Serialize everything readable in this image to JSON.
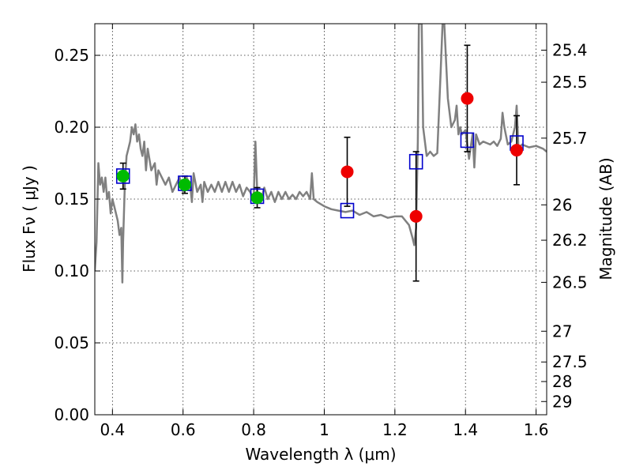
{
  "chart_data": {
    "type": "scatter",
    "xlabel": "Wavelength  λ (μm)",
    "ylabel": "Flux  Fν  ( μJy )",
    "ylabel_right": "Magnitude (AB)",
    "xlim": [
      0.35,
      1.63
    ],
    "ylim": [
      0.0,
      0.272
    ],
    "x_ticks": [
      0.4,
      0.6,
      0.8,
      1.0,
      1.2,
      1.4,
      1.6
    ],
    "x_tick_labels": [
      "0.4",
      "0.6",
      "0.8",
      "1",
      "1.2",
      "1.4",
      "1.6"
    ],
    "y_ticks": [
      0.0,
      0.05,
      0.1,
      0.15,
      0.2,
      0.25
    ],
    "y_tick_labels": [
      "0.00",
      "0.05",
      "0.10",
      "0.15",
      "0.20",
      "0.25"
    ],
    "mag_ticks": [
      {
        "label": "25.4",
        "flux": 0.2536
      },
      {
        "label": "25.5",
        "flux": 0.2313
      },
      {
        "label": "25.7",
        "flux": 0.1924
      },
      {
        "label": "26",
        "flux": 0.146
      },
      {
        "label": "26.2",
        "flux": 0.1214
      },
      {
        "label": "26.5",
        "flux": 0.0921
      },
      {
        "label": "27",
        "flux": 0.0581
      },
      {
        "label": "27.5",
        "flux": 0.0367
      },
      {
        "label": "28",
        "flux": 0.0231
      },
      {
        "label": "29",
        "flux": 0.0092
      }
    ],
    "grid": true,
    "colors": {
      "template": "#808080",
      "green_points": "#00bb00",
      "red_points": "#ee0000",
      "model_squares": "#0000cc",
      "error_bars": "#000000"
    },
    "template_spectrum": {
      "x": [
        0.35,
        0.355,
        0.36,
        0.365,
        0.37,
        0.375,
        0.38,
        0.385,
        0.39,
        0.395,
        0.4,
        0.405,
        0.41,
        0.415,
        0.42,
        0.425,
        0.428,
        0.43,
        0.435,
        0.44,
        0.445,
        0.45,
        0.455,
        0.46,
        0.465,
        0.47,
        0.475,
        0.48,
        0.485,
        0.49,
        0.495,
        0.5,
        0.51,
        0.52,
        0.525,
        0.53,
        0.54,
        0.55,
        0.56,
        0.57,
        0.58,
        0.59,
        0.6,
        0.61,
        0.62,
        0.625,
        0.63,
        0.64,
        0.65,
        0.655,
        0.66,
        0.67,
        0.68,
        0.69,
        0.7,
        0.71,
        0.72,
        0.73,
        0.74,
        0.75,
        0.76,
        0.77,
        0.78,
        0.79,
        0.8,
        0.805,
        0.81,
        0.82,
        0.83,
        0.84,
        0.85,
        0.86,
        0.87,
        0.88,
        0.89,
        0.9,
        0.91,
        0.92,
        0.93,
        0.94,
        0.95,
        0.96,
        0.965,
        0.97,
        0.98,
        1.0,
        1.02,
        1.04,
        1.06,
        1.08,
        1.1,
        1.12,
        1.14,
        1.16,
        1.18,
        1.2,
        1.22,
        1.24,
        1.25,
        1.255,
        1.26,
        1.265,
        1.268,
        1.272,
        1.276,
        1.28,
        1.29,
        1.3,
        1.31,
        1.32,
        1.33,
        1.335,
        1.34,
        1.35,
        1.36,
        1.37,
        1.375,
        1.38,
        1.385,
        1.39,
        1.4,
        1.41,
        1.42,
        1.425,
        1.43,
        1.44,
        1.45,
        1.46,
        1.47,
        1.48,
        1.49,
        1.5,
        1.505,
        1.51,
        1.52,
        1.53,
        1.54,
        1.545,
        1.55,
        1.56,
        1.58,
        1.6,
        1.62,
        1.63
      ],
      "y": [
        0.1,
        0.12,
        0.175,
        0.16,
        0.165,
        0.155,
        0.165,
        0.15,
        0.155,
        0.14,
        0.15,
        0.145,
        0.14,
        0.135,
        0.125,
        0.13,
        0.092,
        0.12,
        0.16,
        0.18,
        0.185,
        0.19,
        0.2,
        0.195,
        0.202,
        0.19,
        0.195,
        0.185,
        0.18,
        0.19,
        0.17,
        0.185,
        0.17,
        0.175,
        0.16,
        0.17,
        0.165,
        0.16,
        0.165,
        0.155,
        0.16,
        0.165,
        0.155,
        0.165,
        0.16,
        0.148,
        0.168,
        0.155,
        0.16,
        0.148,
        0.162,
        0.155,
        0.16,
        0.155,
        0.162,
        0.155,
        0.162,
        0.155,
        0.162,
        0.155,
        0.16,
        0.152,
        0.158,
        0.155,
        0.15,
        0.19,
        0.155,
        0.148,
        0.158,
        0.15,
        0.155,
        0.148,
        0.155,
        0.15,
        0.155,
        0.15,
        0.153,
        0.15,
        0.155,
        0.152,
        0.155,
        0.15,
        0.168,
        0.15,
        0.148,
        0.145,
        0.143,
        0.142,
        0.141,
        0.142,
        0.139,
        0.141,
        0.138,
        0.139,
        0.137,
        0.138,
        0.138,
        0.132,
        0.123,
        0.118,
        0.13,
        0.19,
        0.272,
        0.272,
        0.272,
        0.2,
        0.18,
        0.183,
        0.18,
        0.182,
        0.24,
        0.272,
        0.272,
        0.22,
        0.2,
        0.205,
        0.215,
        0.195,
        0.2,
        0.195,
        0.198,
        0.178,
        0.195,
        0.172,
        0.195,
        0.188,
        0.19,
        0.189,
        0.188,
        0.19,
        0.187,
        0.192,
        0.21,
        0.2,
        0.188,
        0.19,
        0.2,
        0.215,
        0.185,
        0.188,
        0.186,
        0.187,
        0.185,
        0.183
      ]
    },
    "green_points": [
      {
        "x": 0.43,
        "y": 0.166,
        "yerr": 0.009
      },
      {
        "x": 0.605,
        "y": 0.16,
        "yerr": 0.006
      },
      {
        "x": 0.81,
        "y": 0.151,
        "yerr": 0.007
      }
    ],
    "red_points": [
      {
        "x": 1.065,
        "y": 0.169,
        "yerr": 0.024
      },
      {
        "x": 1.26,
        "y": 0.138,
        "yerr": 0.045
      },
      {
        "x": 1.405,
        "y": 0.22,
        "yerr": 0.037
      },
      {
        "x": 1.545,
        "y": 0.184,
        "yerr": 0.024
      }
    ],
    "model_squares": [
      {
        "x": 0.43,
        "y": 0.166
      },
      {
        "x": 0.605,
        "y": 0.161
      },
      {
        "x": 0.81,
        "y": 0.152
      },
      {
        "x": 1.065,
        "y": 0.142
      },
      {
        "x": 1.26,
        "y": 0.176
      },
      {
        "x": 1.405,
        "y": 0.191
      },
      {
        "x": 1.545,
        "y": 0.189
      }
    ]
  }
}
